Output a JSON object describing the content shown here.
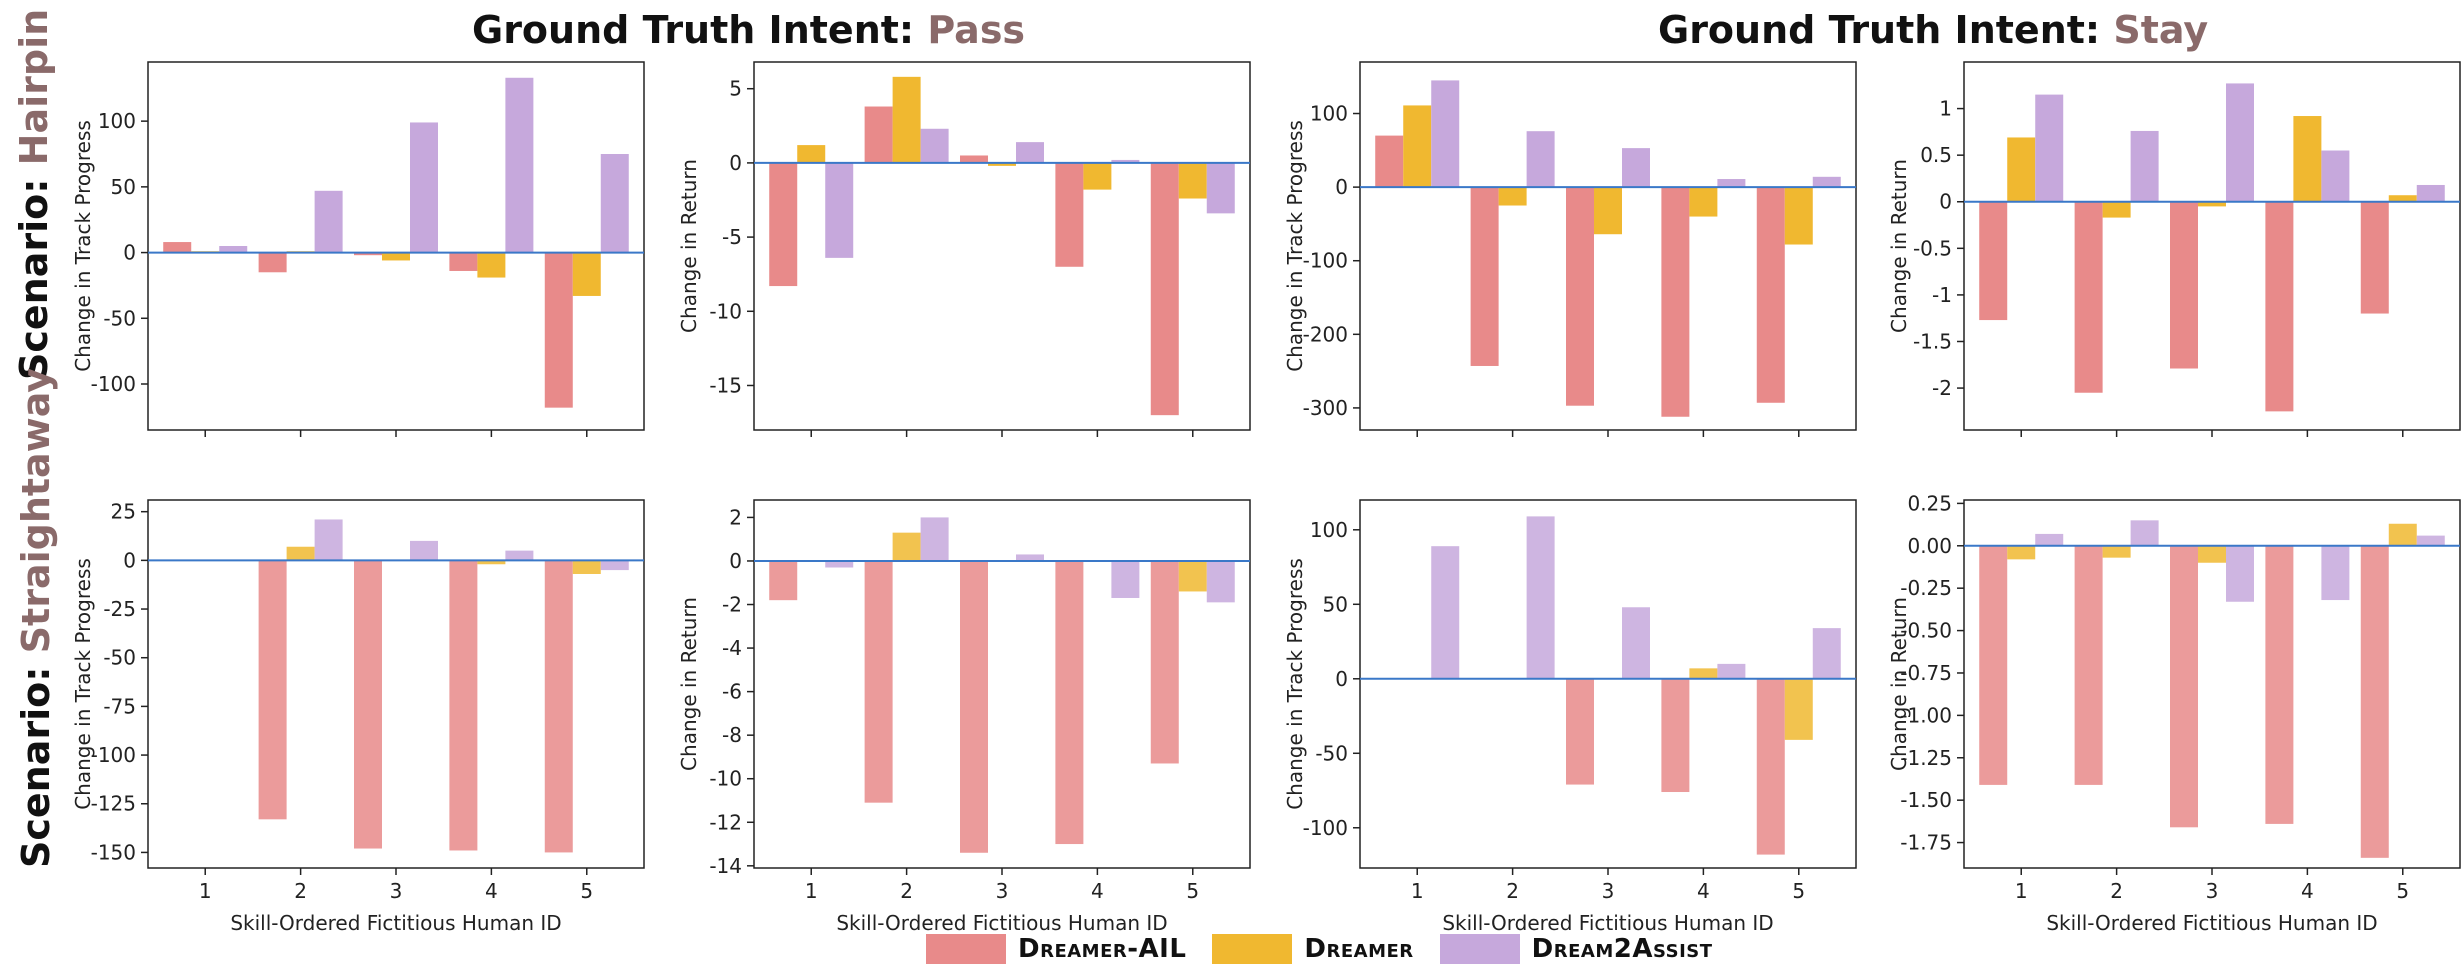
{
  "titles": {
    "col_pass_prefix": "Ground Truth Intent: ",
    "col_pass_accent": "Pass",
    "col_stay_prefix": "Ground Truth Intent: ",
    "col_stay_accent": "Stay",
    "row_hairpin_prefix": "Scenario: ",
    "row_hairpin_accent": "Hairpin",
    "row_straight_prefix": "Scenario: ",
    "row_straight_accent": "Straightaway"
  },
  "legend": {
    "items": [
      {
        "label": "Dreamer-AIL",
        "color": "#e88a8a"
      },
      {
        "label": "Dreamer",
        "color": "#f0b830"
      },
      {
        "label": "Dream2Assist",
        "color": "#c6a8dc"
      }
    ]
  },
  "colors": {
    "series": [
      "#e88a8a",
      "#f0b830",
      "#c6a8dc"
    ],
    "zero_line": "#3a78c8"
  },
  "chart_data": [
    {
      "type": "bar",
      "id": "hp-pass-progress",
      "xlabel": "",
      "ylabel": "Change in Track Progress",
      "categories": [
        "1",
        "2",
        "3",
        "4",
        "5"
      ],
      "ylim": [
        -135,
        145
      ],
      "yticks": [
        100,
        50,
        0,
        -50,
        -100
      ],
      "yticklabels": [
        "100",
        "50",
        "0",
        "-50",
        "-100"
      ],
      "series": [
        {
          "name": "Dreamer-AIL",
          "values": [
            8,
            -15,
            -2,
            -14,
            -118
          ]
        },
        {
          "name": "Dreamer",
          "values": [
            1,
            1,
            -6,
            -19,
            -33
          ]
        },
        {
          "name": "Dream2Assist",
          "values": [
            5,
            47,
            99,
            133,
            75
          ]
        }
      ]
    },
    {
      "type": "bar",
      "id": "hp-pass-return",
      "xlabel": "",
      "ylabel": "Change in Return",
      "categories": [
        "1",
        "2",
        "3",
        "4",
        "5"
      ],
      "ylim": [
        -18,
        6.8
      ],
      "yticks": [
        5,
        0,
        -5,
        -10,
        -15
      ],
      "yticklabels": [
        "5",
        "0",
        "-5",
        "-10",
        "-15"
      ],
      "series": [
        {
          "name": "Dreamer-AIL",
          "values": [
            -8.3,
            3.8,
            0.5,
            -7.0,
            -17.0
          ]
        },
        {
          "name": "Dreamer",
          "values": [
            1.2,
            5.8,
            -0.2,
            -1.8,
            -2.4
          ]
        },
        {
          "name": "Dream2Assist",
          "values": [
            -6.4,
            2.3,
            1.4,
            0.2,
            -3.4
          ]
        }
      ]
    },
    {
      "type": "bar",
      "id": "hp-stay-progress",
      "xlabel": "",
      "ylabel": "Change in Track Progress",
      "categories": [
        "1",
        "2",
        "3",
        "4",
        "5"
      ],
      "ylim": [
        -330,
        170
      ],
      "yticks": [
        100,
        0,
        -100,
        -200,
        -300
      ],
      "yticklabels": [
        "100",
        "0",
        "-100",
        "-200",
        "-300"
      ],
      "series": [
        {
          "name": "Dreamer-AIL",
          "values": [
            70,
            -243,
            -297,
            -312,
            -293
          ]
        },
        {
          "name": "Dreamer",
          "values": [
            111,
            -25,
            -64,
            -40,
            -78
          ]
        },
        {
          "name": "Dream2Assist",
          "values": [
            145,
            76,
            53,
            11,
            14
          ]
        }
      ]
    },
    {
      "type": "bar",
      "id": "hp-stay-return",
      "xlabel": "",
      "ylabel": "Change in Return",
      "categories": [
        "1",
        "2",
        "3",
        "4",
        "5"
      ],
      "ylim": [
        -2.45,
        1.5
      ],
      "yticks": [
        1,
        0.5,
        0,
        -0.5,
        -1,
        -1.5,
        -2
      ],
      "yticklabels": [
        "1",
        "0.5",
        "0",
        "-0.5",
        "-1",
        "-1.5",
        "-2"
      ],
      "series": [
        {
          "name": "Dreamer-AIL",
          "values": [
            -1.27,
            -2.05,
            -1.79,
            -2.25,
            -1.2
          ]
        },
        {
          "name": "Dreamer",
          "values": [
            0.69,
            -0.17,
            -0.05,
            0.92,
            0.07
          ]
        },
        {
          "name": "Dream2Assist",
          "values": [
            1.15,
            0.76,
            1.27,
            0.55,
            0.18
          ]
        }
      ]
    },
    {
      "type": "bar",
      "id": "st-pass-progress",
      "xlabel": "Skill-Ordered Fictitious Human ID",
      "ylabel": "Change in Track Progress",
      "categories": [
        "1",
        "2",
        "3",
        "4",
        "5"
      ],
      "ylim": [
        -158,
        31
      ],
      "yticks": [
        25,
        0,
        -25,
        -50,
        -75,
        -100,
        -125,
        -150
      ],
      "yticklabels": [
        "25",
        "0",
        "-25",
        "-50",
        "-75",
        "-100",
        "-125",
        "-150"
      ],
      "series": [
        {
          "name": "Dreamer-AIL",
          "values": [
            0,
            -133,
            -148,
            -149,
            -150
          ]
        },
        {
          "name": "Dreamer",
          "values": [
            0,
            7,
            0,
            -2,
            -7
          ]
        },
        {
          "name": "Dream2Assist",
          "values": [
            0,
            21,
            10,
            5,
            -5
          ]
        }
      ]
    },
    {
      "type": "bar",
      "id": "st-pass-return",
      "xlabel": "Skill-Ordered Fictitious Human ID",
      "ylabel": "Change in Return",
      "categories": [
        "1",
        "2",
        "3",
        "4",
        "5"
      ],
      "ylim": [
        -14.1,
        2.8
      ],
      "yticks": [
        2,
        0,
        -2,
        -4,
        -6,
        -8,
        -10,
        -12,
        -14
      ],
      "yticklabels": [
        "2",
        "0",
        "-2",
        "-4",
        "-6",
        "-8",
        "-10",
        "-12",
        "-14"
      ],
      "series": [
        {
          "name": "Dreamer-AIL",
          "values": [
            -1.8,
            -11.1,
            -13.4,
            -13.0,
            -9.3
          ]
        },
        {
          "name": "Dreamer",
          "values": [
            0,
            1.3,
            0,
            0,
            -1.4
          ]
        },
        {
          "name": "Dream2Assist",
          "values": [
            -0.3,
            2.0,
            0.3,
            -1.7,
            -1.9
          ]
        }
      ]
    },
    {
      "type": "bar",
      "id": "st-stay-progress",
      "xlabel": "Skill-Ordered Fictitious Human ID",
      "ylabel": "Change in Track Progress",
      "categories": [
        "1",
        "2",
        "3",
        "4",
        "5"
      ],
      "ylim": [
        -127,
        120
      ],
      "yticks": [
        100,
        50,
        0,
        -50,
        -100
      ],
      "yticklabels": [
        "100",
        "50",
        "0",
        "-50",
        "-100"
      ],
      "series": [
        {
          "name": "Dreamer-AIL",
          "values": [
            0,
            0,
            -71,
            -76,
            -118
          ]
        },
        {
          "name": "Dreamer",
          "values": [
            0,
            0,
            0,
            7,
            -41
          ]
        },
        {
          "name": "Dream2Assist",
          "values": [
            89,
            109,
            48,
            10,
            34
          ]
        }
      ]
    },
    {
      "type": "bar",
      "id": "st-stay-return",
      "xlabel": "Skill-Ordered Fictitious Human ID",
      "ylabel": "Change in Return",
      "categories": [
        "1",
        "2",
        "3",
        "4",
        "5"
      ],
      "ylim": [
        -1.9,
        0.27
      ],
      "yticks": [
        0.25,
        0.0,
        -0.25,
        -0.5,
        -0.75,
        -1.0,
        -1.25,
        -1.5,
        -1.75
      ],
      "yticklabels": [
        "0.25",
        "0.00",
        "-0.25",
        "-0.50",
        "-0.75",
        "-1.00",
        "-1.25",
        "-1.50",
        "-1.75"
      ],
      "series": [
        {
          "name": "Dreamer-AIL",
          "values": [
            -1.41,
            -1.41,
            -1.66,
            -1.64,
            -1.84
          ]
        },
        {
          "name": "Dreamer",
          "values": [
            -0.08,
            -0.07,
            -0.1,
            0,
            0.13
          ]
        },
        {
          "name": "Dream2Assist",
          "values": [
            0.07,
            0.15,
            -0.33,
            -0.32,
            0.06
          ]
        }
      ]
    }
  ]
}
